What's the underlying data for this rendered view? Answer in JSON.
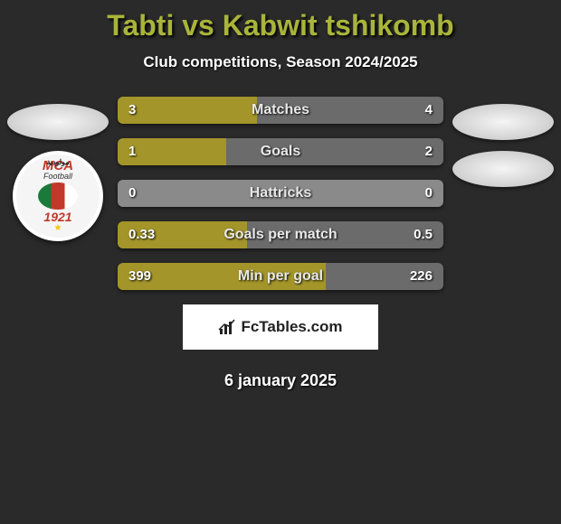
{
  "title": "Tabti vs Kabwit tshikomb",
  "subtitle": "Club competitions, Season 2024/2025",
  "date": "6 january 2025",
  "brand": "FcTables.com",
  "colors": {
    "accent": "#a9b43a",
    "bar_left": "#a39529",
    "bar_right": "#6b6b6b",
    "bar_right_full": "#8a8a8a",
    "background": "#2a2a2a"
  },
  "left_team": {
    "badge_top_text": "مولودية",
    "badge_line1": "MCA",
    "badge_line2": "Football",
    "badge_year": "1921"
  },
  "bars": [
    {
      "label": "Matches",
      "left_val": "3",
      "right_val": "4",
      "left_pct": 42.9,
      "right_pct": 57.1
    },
    {
      "label": "Goals",
      "left_val": "1",
      "right_val": "2",
      "left_pct": 33.3,
      "right_pct": 66.7
    },
    {
      "label": "Hattricks",
      "left_val": "0",
      "right_val": "0",
      "left_pct": 0,
      "right_pct": 100
    },
    {
      "label": "Goals per match",
      "left_val": "0.33",
      "right_val": "0.5",
      "left_pct": 39.8,
      "right_pct": 60.2
    },
    {
      "label": "Min per goal",
      "left_val": "399",
      "right_val": "226",
      "left_pct": 63.8,
      "right_pct": 36.2
    }
  ]
}
